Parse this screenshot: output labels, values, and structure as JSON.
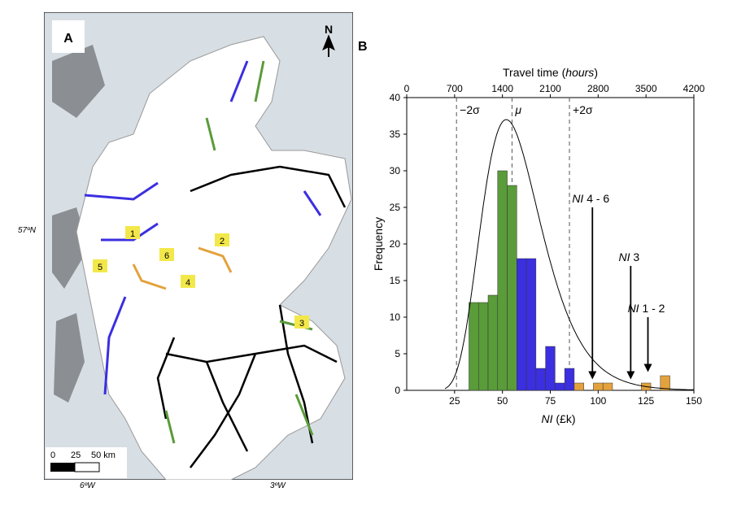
{
  "map": {
    "panel_label": "A",
    "north_label": "N",
    "lat_label": "57ºN",
    "lon_labels": [
      "6ºW",
      "3ºW"
    ],
    "scale_labels": [
      "0",
      "25",
      "50 km"
    ],
    "markers": [
      "1",
      "2",
      "3",
      "4",
      "5",
      "6"
    ],
    "colors": {
      "sea": "#d7dee4",
      "land": "#ffffff",
      "other_land": "#8b8f93",
      "green": "#5a9b3a",
      "blue": "#3b2fe0",
      "orange": "#e3a23c",
      "black": "#000000",
      "marker_bg": "#f3e84a"
    }
  },
  "chart_data": {
    "type": "bar",
    "panel_label": "B",
    "xlabel": "NI (£k)",
    "ylabel": "Frequency",
    "top_xlabel": "Travel time (hours)",
    "xlim": [
      0,
      150
    ],
    "ylim": [
      0,
      40
    ],
    "x_ticks": [
      25,
      50,
      75,
      100,
      125,
      150
    ],
    "y_ticks": [
      0,
      5,
      10,
      15,
      20,
      25,
      30,
      35,
      40
    ],
    "top_ticks": [
      0,
      700,
      1400,
      2100,
      2800,
      3500,
      4200
    ],
    "sigma_labels": {
      "minus": "−2σ",
      "mu": "μ",
      "plus": "+2σ"
    },
    "sigma_lines": [
      26,
      55,
      85
    ],
    "bars": [
      {
        "x": 35,
        "value": 12,
        "group": "green"
      },
      {
        "x": 40,
        "value": 12,
        "group": "green"
      },
      {
        "x": 45,
        "value": 13,
        "group": "green"
      },
      {
        "x": 50,
        "value": 30,
        "group": "green"
      },
      {
        "x": 55,
        "value": 28,
        "group": "green"
      },
      {
        "x": 60,
        "value": 18,
        "group": "blue"
      },
      {
        "x": 65,
        "value": 18,
        "group": "blue"
      },
      {
        "x": 70,
        "value": 3,
        "group": "blue"
      },
      {
        "x": 75,
        "value": 6,
        "group": "blue"
      },
      {
        "x": 80,
        "value": 1,
        "group": "blue"
      },
      {
        "x": 85,
        "value": 3,
        "group": "blue"
      },
      {
        "x": 90,
        "value": 1,
        "group": "orange"
      },
      {
        "x": 100,
        "value": 1,
        "group": "orange"
      },
      {
        "x": 105,
        "value": 1,
        "group": "orange"
      },
      {
        "x": 125,
        "value": 1,
        "group": "orange"
      },
      {
        "x": 135,
        "value": 2,
        "group": "orange"
      }
    ],
    "bin_width": 5,
    "group_colors": {
      "green": "#5a9b3a",
      "blue": "#3b2fe0",
      "orange": "#e3a23c"
    },
    "curve": {
      "peak_x": 52,
      "peak_y": 37
    },
    "arrows": [
      {
        "label_prefix": "NI",
        "label_suffix": " 4 - 6",
        "x": 97,
        "from_y": 25,
        "to_y": 1.5
      },
      {
        "label_prefix": "NI",
        "label_suffix": " 3",
        "x": 117,
        "from_y": 17,
        "to_y": 1.5
      },
      {
        "label_prefix": "NI",
        "label_suffix": " 1 - 2",
        "x": 126,
        "from_y": 10,
        "to_y": 2.5
      }
    ]
  }
}
